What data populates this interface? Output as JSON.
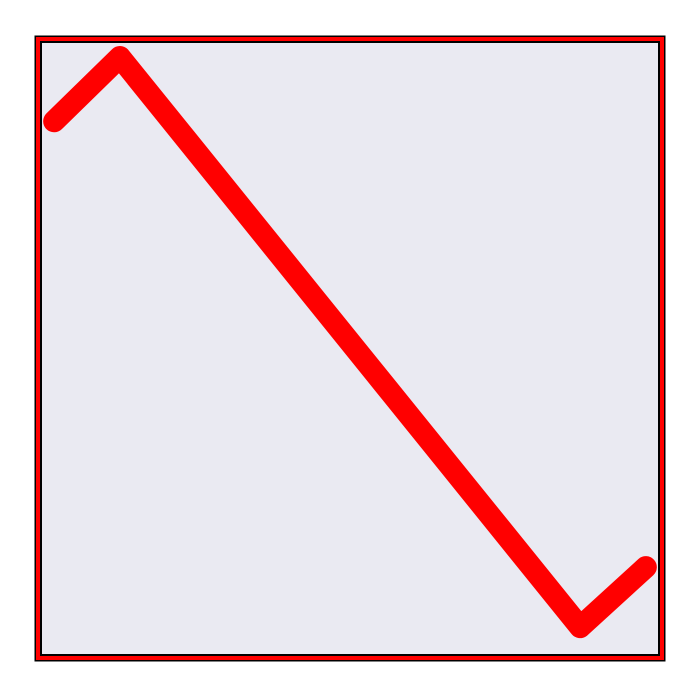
{
  "chart_data": {
    "type": "line",
    "title": "",
    "xlabel": "",
    "ylabel": "",
    "x": [
      0,
      1,
      2,
      3,
      4,
      5,
      6,
      7,
      8,
      9
    ],
    "series": [
      {
        "values": [
          0.95,
          2.45,
          0.55,
          -1.35,
          -3.25,
          -5.15,
          -7.05,
          -8.95,
          -10.85,
          -9.45
        ]
      }
    ],
    "xlim": [
      -0.2,
      9.2
    ],
    "ylim": [
      -11.5,
      2.8
    ],
    "grid": false,
    "legend": "none",
    "colors": {
      "line": "#ff0000",
      "plot_background": "#eaeaf2",
      "frame_outer": "#ff0000",
      "frame_inner": "#000000",
      "page_background": "#ffffff"
    }
  }
}
